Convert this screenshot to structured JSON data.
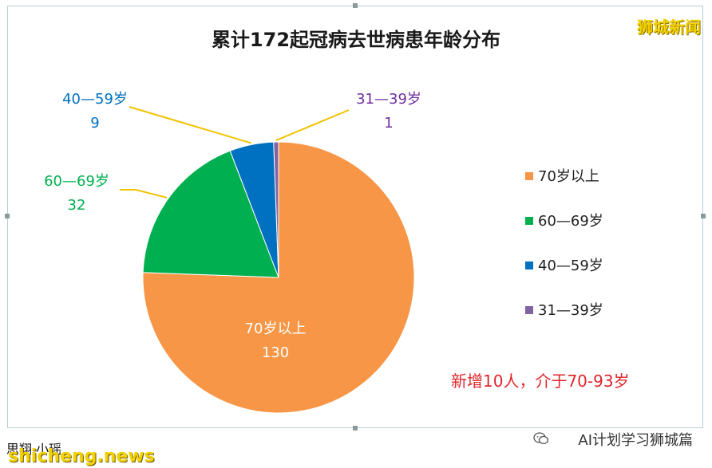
{
  "chart_data": {
    "type": "pie",
    "title": "累计172起冠病去世病患年龄分布",
    "slices": [
      {
        "label": "70岁以上",
        "value": 130,
        "color": "#F79646"
      },
      {
        "label": "60—69岁",
        "value": 32,
        "color": "#00B050"
      },
      {
        "label": "40—59岁",
        "value": 9,
        "color": "#0070C0"
      },
      {
        "label": "31—39岁",
        "value": 1,
        "color": "#8064A2"
      }
    ],
    "label_colors": {
      "70岁以上": "#FFFFFF",
      "60—69岁": "#00B050",
      "40—59岁": "#0070C0",
      "31—39岁": "#7030A0"
    },
    "legend_position": "right",
    "annotation": "新增10人，介于70-93岁"
  },
  "header": {
    "brand": "狮城新闻"
  },
  "footer": {
    "caption": "思翔·小瑶",
    "site": "shicheng.news",
    "account": "AI计划学习狮城篇"
  },
  "colors": {
    "leader_line": "#F2C200",
    "annotation": "#E0262B",
    "frame_border": "#B9CFD0"
  },
  "icons": {
    "wechat": "wechat-icon"
  }
}
